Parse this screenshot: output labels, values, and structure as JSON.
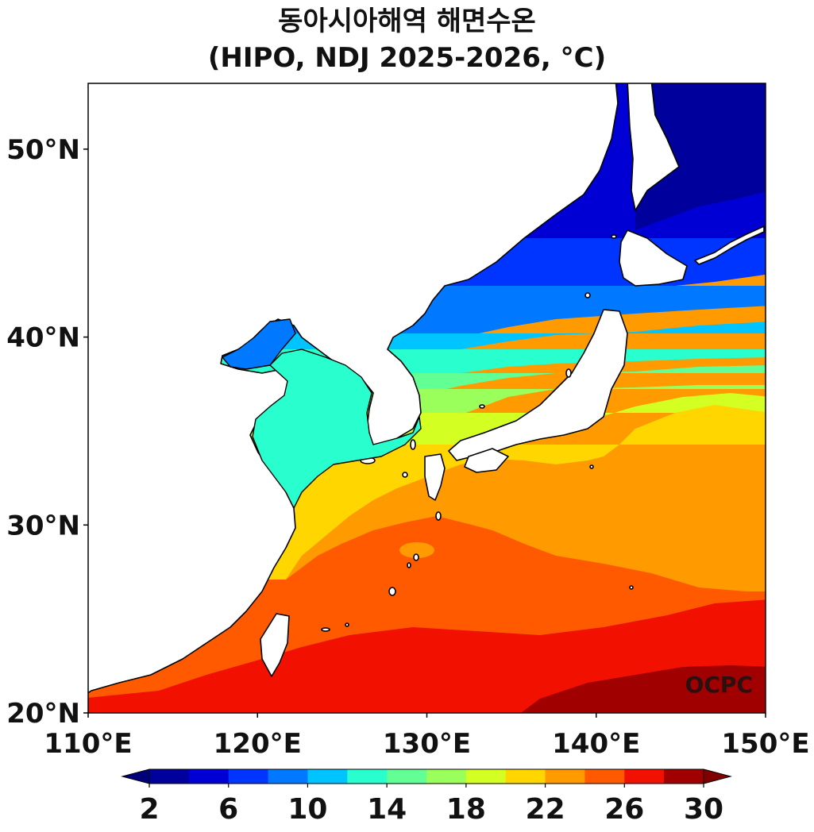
{
  "title": {
    "line1": "동아시아해역 해면수온",
    "line2": "(HIPO, NDJ 2025-2026, °C)"
  },
  "map": {
    "lon_range": [
      110,
      150
    ],
    "lat_range": [
      20,
      53.5
    ],
    "x_ticks": [
      {
        "value": 110,
        "label": "110°E"
      },
      {
        "value": 120,
        "label": "120°E"
      },
      {
        "value": 130,
        "label": "130°E"
      },
      {
        "value": 140,
        "label": "140°E"
      },
      {
        "value": 150,
        "label": "150°E"
      }
    ],
    "y_ticks": [
      {
        "value": 20,
        "label": "20°N"
      },
      {
        "value": 30,
        "label": "30°N"
      },
      {
        "value": 40,
        "label": "40°N"
      },
      {
        "value": 50,
        "label": "50°N"
      }
    ],
    "credit": "OCPC"
  },
  "colorbar": {
    "min": 2,
    "max": 30,
    "step": 2,
    "extend": "both",
    "tick_labels": [
      "2",
      "6",
      "10",
      "14",
      "18",
      "22",
      "26",
      "30"
    ],
    "colors": [
      "#00009c",
      "#0000d4",
      "#0034ff",
      "#0078ff",
      "#00c4ff",
      "#29ffce",
      "#62ff94",
      "#9bff5b",
      "#d4ff22",
      "#ffd600",
      "#ff9a00",
      "#ff5a00",
      "#f21000",
      "#a00000"
    ],
    "extend_low_color": "#00007a",
    "extend_high_color": "#800000"
  }
}
